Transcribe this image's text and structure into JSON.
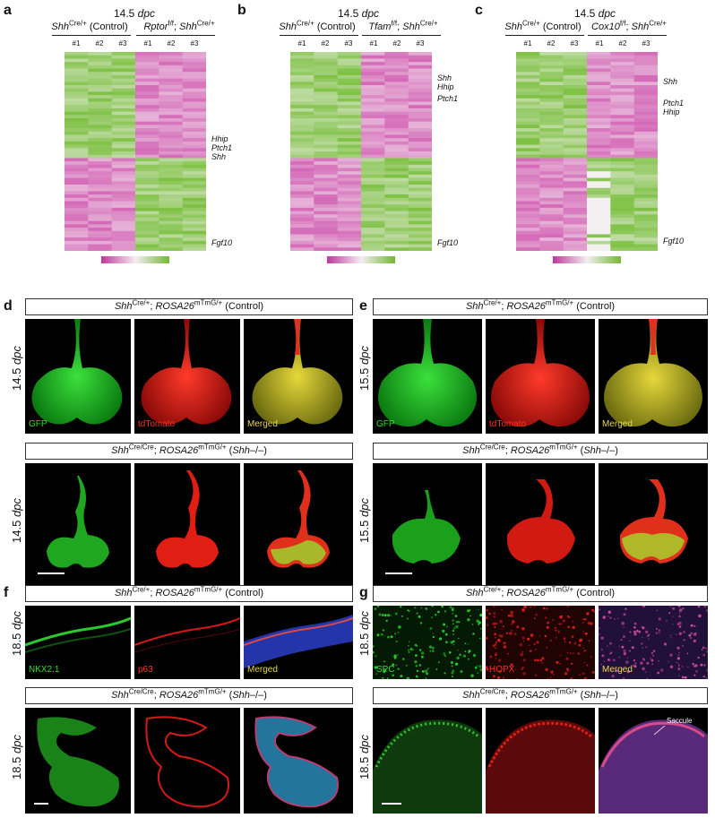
{
  "panels": {
    "a": {
      "letter": "a",
      "dpc": "14.5",
      "dpc_unit": "dpc",
      "control": {
        "gene": "Shh",
        "sup": "Cre/+",
        "suffix": " (Control)"
      },
      "mutant": {
        "gene1": "Rptor",
        "sup1": "f/f",
        "sep": "; ",
        "gene2": "Shh",
        "sup2": "Cre/+"
      },
      "reps": [
        "#1",
        "#2",
        "#3",
        "#1",
        "#2",
        "#3"
      ],
      "genes_top": [
        "Hhip",
        "Ptch1",
        "Shh"
      ],
      "genes_bottom": [
        "Fgf10"
      ]
    },
    "b": {
      "letter": "b",
      "dpc": "14.5",
      "dpc_unit": "dpc",
      "control": {
        "gene": "Shh",
        "sup": "Cre/+",
        "suffix": " (Control)"
      },
      "mutant": {
        "gene1": "Tfam",
        "sup1": "f/f",
        "sep": "; ",
        "gene2": "Shh",
        "sup2": "Cre/+"
      },
      "reps": [
        "#1",
        "#2",
        "#3",
        "#1",
        "#2",
        "#3"
      ],
      "genes_top": [
        "Shh",
        "Hhip",
        "Ptch1"
      ],
      "genes_bottom": [
        "Fgf10"
      ]
    },
    "c": {
      "letter": "c",
      "dpc": "14.5",
      "dpc_unit": "dpc",
      "control": {
        "gene": "Shh",
        "sup": "Cre/+",
        "suffix": " (Control)"
      },
      "mutant": {
        "gene1": "Cox10",
        "sup1": "f/f",
        "sep": "; ",
        "gene2": "Shh",
        "sup2": "Cre/+"
      },
      "reps": [
        "#1",
        "#2",
        "#3",
        "#1",
        "#2",
        "#3"
      ],
      "genes_top": [
        "Shh",
        "Ptch1",
        "Hhip"
      ],
      "genes_bottom": [
        "Fgf10"
      ]
    },
    "d": {
      "letter": "d",
      "top_box": {
        "g1": "Shh",
        "s1": "Cre/+",
        "sep": "; ",
        "g2": "ROSA26",
        "s2": "mTmG/+",
        "tail": " (Control)"
      },
      "bottom_box": {
        "g1": "Shh",
        "s1": "Cre/Cre",
        "sep": "; ",
        "g2": "ROSA26",
        "s2": "mTmG/+",
        "tail_pre": " (",
        "tail_gene": "Shh",
        "tail_post": "–/–)"
      },
      "row_label": "14.5",
      "row_unit": "dpc",
      "channels": [
        "GFP",
        "tdTomato",
        "Merged"
      ]
    },
    "e": {
      "letter": "e",
      "top_box": {
        "g1": "Shh",
        "s1": "Cre/+",
        "sep": "; ",
        "g2": "ROSA26",
        "s2": "mTmG/+",
        "tail": " (Control)"
      },
      "bottom_box": {
        "g1": "Shh",
        "s1": "Cre/Cre",
        "sep": "; ",
        "g2": "ROSA26",
        "s2": "mTmG/+",
        "tail_pre": " (",
        "tail_gene": "Shh",
        "tail_post": "–/–)"
      },
      "row_label": "15.5",
      "row_unit": "dpc",
      "channels": [
        "GFP",
        "tdTomato",
        "Merged"
      ]
    },
    "f": {
      "letter": "f",
      "top_box": {
        "g1": "Shh",
        "s1": "Cre/+",
        "sep": "; ",
        "g2": "ROSA26",
        "s2": "mTmG/+",
        "tail": " (Control)"
      },
      "bottom_box": {
        "g1": "Shh",
        "s1": "Cre/Cre",
        "sep": "; ",
        "g2": "ROSA26",
        "s2": "mTmG/+",
        "tail_pre": " (",
        "tail_gene": "Shh",
        "tail_post": "–/–)"
      },
      "row_label": "18.5",
      "row_unit": "dpc",
      "channels": [
        "NKX2.1",
        "p63",
        "Merged"
      ]
    },
    "g": {
      "letter": "g",
      "top_box": {
        "g1": "Shh",
        "s1": "Cre/+",
        "sep": "; ",
        "g2": "ROSA26",
        "s2": "mTmG/+",
        "tail": " (Control)"
      },
      "bottom_box": {
        "g1": "Shh",
        "s1": "Cre/Cre",
        "sep": "; ",
        "g2": "ROSA26",
        "s2": "mTmG/+",
        "tail_pre": " (",
        "tail_gene": "Shh",
        "tail_post": "–/–)"
      },
      "row_label": "18.5",
      "row_unit": "dpc",
      "channels": [
        "SPC",
        "HOPX",
        "Merged"
      ],
      "annotation": "Saccule"
    }
  },
  "colors": {
    "green": "#7dc142",
    "pink": "#d56ab8",
    "gfp": "#22dd22",
    "tdtomato": "#ff2a1a",
    "merged": "#d4c42a",
    "dapi": "#3355dd",
    "label_green": "#33dd33",
    "label_red": "#ff3322",
    "label_yellow": "#e8d84a"
  }
}
